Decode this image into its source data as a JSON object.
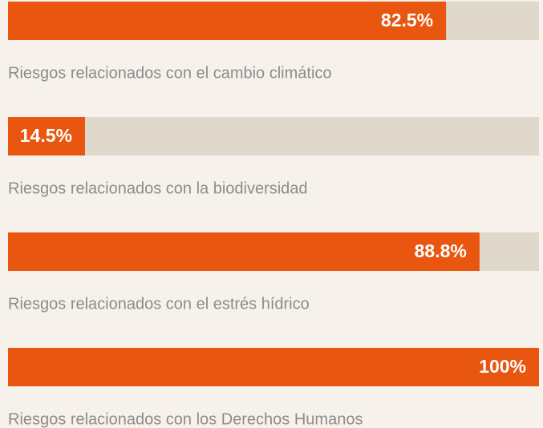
{
  "chart_data": {
    "type": "bar",
    "orientation": "horizontal",
    "categories": [
      "Riesgos relacionados con el cambio climático",
      "Riesgos relacionados con la biodiversidad",
      "Riesgos relacionados con el estrés hídrico",
      "Riesgos relacionados con los Derechos Humanos"
    ],
    "values": [
      82.5,
      14.5,
      88.8,
      100
    ],
    "value_labels": [
      "82.5%",
      "14.5%",
      "88.8%",
      "100%"
    ],
    "color": "#e8560f",
    "track_color": "#e0d8cb",
    "xlim": [
      0,
      100
    ]
  }
}
